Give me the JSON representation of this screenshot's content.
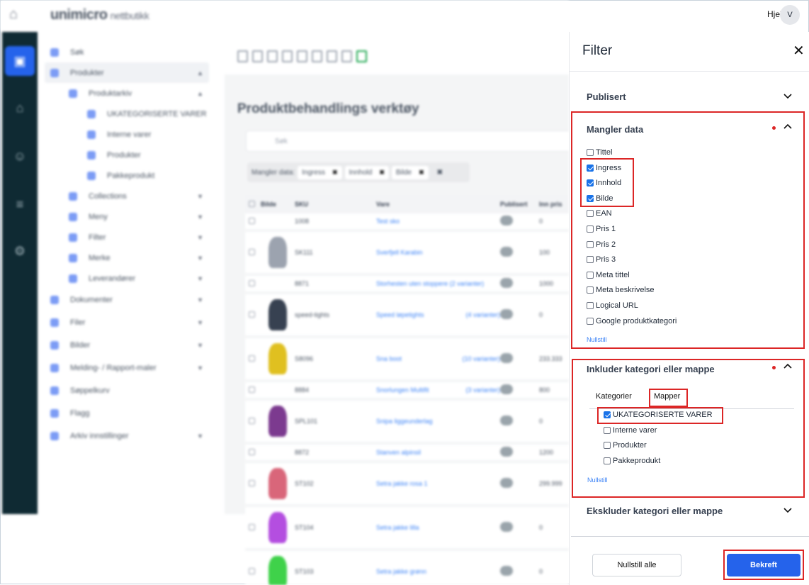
{
  "header": {
    "logo": "unimicro",
    "logo_suffix": "nettbutikk",
    "help": "Hjelp",
    "avatar": "V"
  },
  "rail": {
    "active_label": "Arkiv"
  },
  "sidebar": {
    "items": [
      {
        "label": "Søk",
        "indent": 0
      },
      {
        "label": "Produkter",
        "indent": 0,
        "expanded": true
      },
      {
        "label": "Produktarkiv",
        "indent": 1,
        "expanded": true
      },
      {
        "label": "UKATEGORISERTE VARER",
        "indent": 2
      },
      {
        "label": "Interne varer",
        "indent": 2
      },
      {
        "label": "Produkter",
        "indent": 2
      },
      {
        "label": "Pakkeprodukt",
        "indent": 2
      },
      {
        "label": "Collections",
        "indent": 1
      },
      {
        "label": "Meny",
        "indent": 1
      },
      {
        "label": "Filter",
        "indent": 1
      },
      {
        "label": "Merke",
        "indent": 1
      },
      {
        "label": "Leverandører",
        "indent": 1
      },
      {
        "label": "Dokumenter",
        "indent": 0
      },
      {
        "label": "Filer",
        "indent": 0
      },
      {
        "label": "Bilder",
        "indent": 0
      },
      {
        "label": "Melding- / Rapport-maler",
        "indent": 0
      },
      {
        "label": "Søppelkurv",
        "indent": 0
      },
      {
        "label": "Flagg",
        "indent": 0
      },
      {
        "label": "Arkiv innstillinger",
        "indent": 0
      }
    ]
  },
  "main": {
    "title": "Produktbehandlings verktøy",
    "search_placeholder": "Søk",
    "chips_label": "Mangler data:",
    "chips": [
      "Ingress",
      "Innhold",
      "Bilde"
    ],
    "columns": [
      "Bilde",
      "SKU",
      "Vare",
      "Publisert",
      "Inn pris"
    ],
    "rows": [
      {
        "sku": "1008",
        "name": "Test sko",
        "variants": "",
        "price": "0",
        "img": ""
      },
      {
        "sku": "SK111",
        "name": "Sverfjell Karabin",
        "variants": "",
        "price": "100",
        "img": "#9ca3af"
      },
      {
        "sku": "8871",
        "name": "Storhesten uten stoppere (2 varianter)",
        "variants": "",
        "price": "1000",
        "img": ""
      },
      {
        "sku": "speed-tights",
        "name": "Speed løpetights",
        "variants": "(4 varianter)",
        "price": "0",
        "img": "#374151"
      },
      {
        "sku": "S8096",
        "name": "Sna boot",
        "variants": "(10 varianter)",
        "price": "233.333",
        "img": "#e0c020"
      },
      {
        "sku": "8884",
        "name": "Snorlungen Multifit",
        "variants": "(3 varianter)",
        "price": "800",
        "img": ""
      },
      {
        "sku": "SPL101",
        "name": "Snipa liggeunderlag",
        "variants": "",
        "price": "0",
        "img": "#7c3a8f"
      },
      {
        "sku": "8872",
        "name": "Stanven alpinsil",
        "variants": "",
        "price": "1200",
        "img": ""
      },
      {
        "sku": "ST102",
        "name": "Setra jakke rosa 1",
        "variants": "",
        "price": "299.999",
        "img": "#d9667a"
      },
      {
        "sku": "ST104",
        "name": "Setra jakke lilla",
        "variants": "",
        "price": "0",
        "img": "#b44ee0"
      },
      {
        "sku": "ST103",
        "name": "Setra jakke grønn",
        "variants": "",
        "price": "0",
        "img": "#3fd24a"
      }
    ]
  },
  "filter": {
    "title": "Filter",
    "sections": {
      "publisert": {
        "title": "Publisert",
        "expanded": false
      },
      "mangler": {
        "title": "Mangler data",
        "expanded": true,
        "active": true,
        "options": [
          {
            "label": "Tittel",
            "checked": false
          },
          {
            "label": "Ingress",
            "checked": true
          },
          {
            "label": "Innhold",
            "checked": true
          },
          {
            "label": "Bilde",
            "checked": true
          },
          {
            "label": "EAN",
            "checked": false
          },
          {
            "label": "Pris 1",
            "checked": false
          },
          {
            "label": "Pris 2",
            "checked": false
          },
          {
            "label": "Pris 3",
            "checked": false
          },
          {
            "label": "Meta tittel",
            "checked": false
          },
          {
            "label": "Meta beskrivelse",
            "checked": false
          },
          {
            "label": "Logical URL",
            "checked": false
          },
          {
            "label": "Google produktkategori",
            "checked": false
          }
        ],
        "reset": "Nullstill"
      },
      "inkluder": {
        "title": "Inkluder kategori eller mappe",
        "expanded": true,
        "active": true,
        "tabs": [
          "Kategorier",
          "Mapper"
        ],
        "active_tab": "Mapper",
        "options": [
          {
            "label": "UKATEGORISERTE VARER",
            "checked": true
          },
          {
            "label": "Interne varer",
            "checked": false
          },
          {
            "label": "Produkter",
            "checked": false
          },
          {
            "label": "Pakkeprodukt",
            "checked": false
          }
        ],
        "reset": "Nullstill"
      },
      "ekskluder": {
        "title": "Ekskluder kategori eller mappe",
        "expanded": false
      }
    },
    "reset_all": "Nullstill alle",
    "confirm": "Bekreft"
  },
  "colors": {
    "accent": "#2563eb",
    "rail": "#0f2a33",
    "highlight": "#dc2626"
  }
}
